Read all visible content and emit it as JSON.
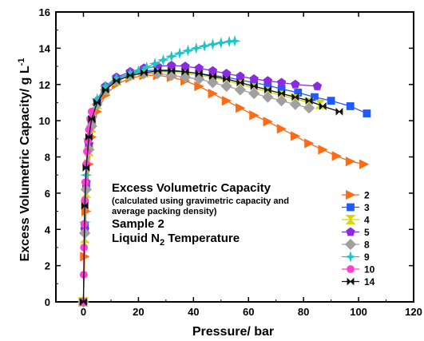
{
  "chart_data": {
    "type": "scatter",
    "xlabel": "Pressure/ bar",
    "ylabel_main": "Excess Volumetric Capacity/ g L",
    "ylabel_sup": "-1",
    "xlim": [
      -10,
      120
    ],
    "ylim": [
      0,
      16
    ],
    "xticks": [
      0,
      20,
      40,
      60,
      80,
      100,
      120
    ],
    "yticks": [
      0,
      2,
      4,
      6,
      8,
      10,
      12,
      14,
      16
    ],
    "grid": false,
    "legend_position": "bottom-right",
    "annotations": {
      "line1": "Excess Volumetric Capacity",
      "line2": "(calculated using gravimetric capacity and",
      "line3": "average packing density)",
      "line4": "Sample 2",
      "line5_main": "Liquid N",
      "line5_sub": "2",
      "line5_end": " Temperature"
    },
    "series": [
      {
        "name": "2",
        "color": "#ff6a13",
        "marker": "triangle-right",
        "x": [
          0,
          0.5,
          1,
          2,
          3,
          5,
          8,
          12,
          17,
          22,
          27,
          32,
          37,
          42,
          47,
          52,
          57,
          62,
          67,
          72,
          77,
          82,
          87,
          92,
          97,
          102
        ],
        "y": [
          0,
          2.5,
          5,
          7.6,
          9.1,
          10.5,
          11.4,
          12.0,
          12.35,
          12.5,
          12.5,
          12.4,
          12.2,
          11.9,
          11.5,
          11.1,
          10.7,
          10.3,
          9.95,
          9.55,
          9.15,
          8.75,
          8.4,
          8.05,
          7.75,
          7.6
        ]
      },
      {
        "name": "3",
        "color": "#1f5bff",
        "marker": "square",
        "x": [
          0,
          0.5,
          1,
          2,
          3,
          5,
          8,
          12,
          17,
          22,
          27,
          32,
          37,
          42,
          47,
          52,
          57,
          62,
          67,
          72,
          78,
          84,
          90,
          97,
          103
        ],
        "y": [
          0,
          4.2,
          6.5,
          8.6,
          9.8,
          11.0,
          11.8,
          12.3,
          12.6,
          12.75,
          12.8,
          12.8,
          12.7,
          12.6,
          12.5,
          12.4,
          12.25,
          12.1,
          11.95,
          11.75,
          11.55,
          11.3,
          11.1,
          10.8,
          10.4
        ]
      },
      {
        "name": "4",
        "color": "#d6d600",
        "marker": "hourglass",
        "x": [
          0,
          0.5,
          1,
          2,
          3,
          5,
          8,
          12,
          17,
          22,
          27,
          32,
          37,
          42,
          47,
          52,
          57,
          62,
          67,
          72,
          77,
          82,
          86
        ],
        "y": [
          0,
          3.5,
          6.0,
          8.3,
          9.6,
          10.9,
          11.7,
          12.2,
          12.5,
          12.65,
          12.7,
          12.7,
          12.6,
          12.5,
          12.4,
          12.2,
          12.0,
          11.8,
          11.6,
          11.4,
          11.2,
          11.0,
          10.9
        ]
      },
      {
        "name": "5",
        "color": "#8a2be2",
        "marker": "pentagon",
        "x": [
          0,
          0.5,
          1,
          2,
          3,
          5,
          8,
          12,
          17,
          22,
          27,
          32,
          37,
          42,
          47,
          52,
          57,
          62,
          67,
          72,
          77,
          85
        ],
        "y": [
          0,
          4.0,
          6.6,
          8.7,
          9.9,
          11.1,
          11.9,
          12.4,
          12.7,
          12.9,
          13.0,
          13.05,
          13.0,
          12.9,
          12.75,
          12.6,
          12.45,
          12.3,
          12.2,
          12.1,
          12.0,
          11.9
        ]
      },
      {
        "name": "8",
        "color": "#a0a0a0",
        "marker": "diamond",
        "x": [
          0,
          0.5,
          1,
          2,
          3,
          5,
          8,
          12,
          17,
          22,
          27,
          32,
          37,
          42,
          47,
          52,
          57,
          62,
          67,
          72,
          77,
          82
        ],
        "y": [
          0,
          3.8,
          6.2,
          8.4,
          9.7,
          10.9,
          11.7,
          12.2,
          12.5,
          12.6,
          12.6,
          12.5,
          12.4,
          12.3,
          12.1,
          11.9,
          11.7,
          11.5,
          11.3,
          11.1,
          10.9,
          10.7
        ]
      },
      {
        "name": "9",
        "color": "#20c4c4",
        "marker": "star",
        "x": [
          0,
          0.5,
          1,
          2,
          3,
          5,
          8,
          12,
          17,
          20,
          23,
          26,
          29,
          32,
          35,
          38,
          41,
          44,
          47,
          50,
          53,
          55
        ],
        "y": [
          0,
          4.4,
          7.0,
          9.0,
          10.2,
          11.2,
          11.9,
          12.35,
          12.6,
          12.75,
          12.95,
          13.15,
          13.35,
          13.55,
          13.72,
          13.87,
          14.0,
          14.12,
          14.22,
          14.3,
          14.37,
          14.4
        ]
      },
      {
        "name": "10",
        "color": "#ff3fd5",
        "marker": "circle",
        "x": [
          0,
          0.1,
          0.2,
          0.3,
          0.5,
          0.7,
          1,
          1.3,
          1.6,
          2.0,
          2.5,
          3.0
        ],
        "y": [
          0,
          1.5,
          3.0,
          4.3,
          5.6,
          6.6,
          7.6,
          8.3,
          8.9,
          9.5,
          10.1,
          10.5
        ]
      },
      {
        "name": "14",
        "color": "#111111",
        "marker": "bowtie",
        "x": [
          0,
          0.5,
          1,
          2,
          3,
          5,
          8,
          12,
          17,
          22,
          27,
          32,
          37,
          42,
          47,
          52,
          57,
          62,
          67,
          72,
          77,
          82,
          87,
          93
        ],
        "y": [
          0,
          5.3,
          7.4,
          9.1,
          10.1,
          11.0,
          11.7,
          12.2,
          12.5,
          12.65,
          12.75,
          12.75,
          12.7,
          12.6,
          12.45,
          12.3,
          12.1,
          11.9,
          11.7,
          11.5,
          11.3,
          11.1,
          10.8,
          10.5
        ]
      }
    ]
  }
}
